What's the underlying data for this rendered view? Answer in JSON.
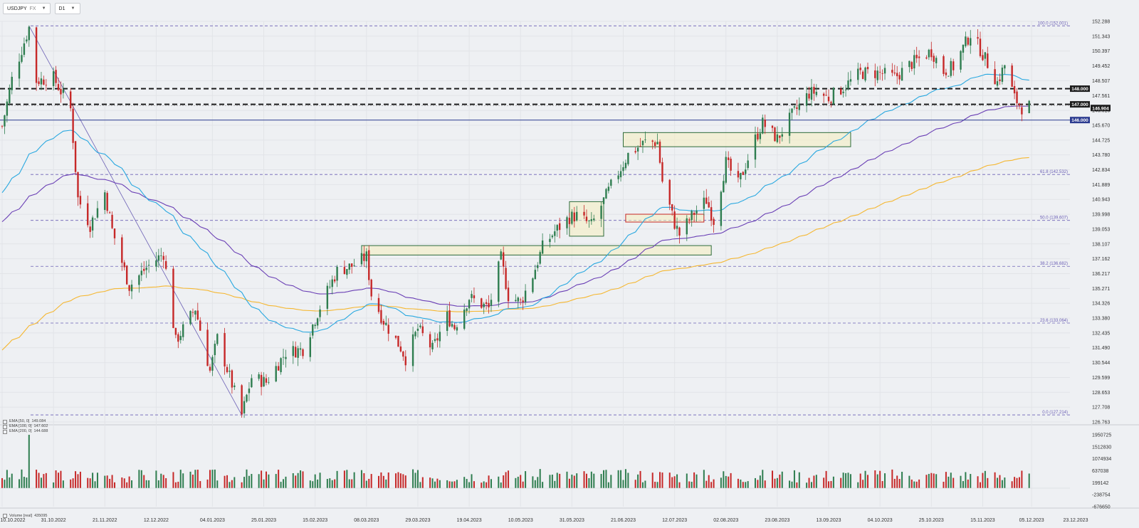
{
  "toolbar": {
    "symbol": "USDJPY",
    "symbol_suffix": "FX",
    "timeframe": "D1"
  },
  "indicators": [
    {
      "label": "EMA [50, 0]",
      "value": "149.084"
    },
    {
      "label": "EMA [100, 0]",
      "value": "147.602"
    },
    {
      "label": "EMA [200, 0]",
      "value": "144.688"
    }
  ],
  "volume_legend": {
    "label": "Volume [real]",
    "value": "435095"
  },
  "colors": {
    "up": "#2e7d4f",
    "down": "#c62828",
    "ema50": "#29a8e0",
    "ema100": "#6a3fb5",
    "ema200": "#f5b731",
    "level_line": "#1b1b1b",
    "support_line": "#2a3a8f",
    "fib": "#6b5fb5"
  },
  "chart_data": {
    "type": "candlestick",
    "ylim": [
      126.763,
      152.288
    ],
    "y_ticks": [
      "152.288",
      "151.343",
      "150.397",
      "149.452",
      "148.507",
      "147.561",
      "146.616",
      "145.670",
      "144.725",
      "143.780",
      "142.834",
      "141.889",
      "140.943",
      "139.998",
      "139.053",
      "138.107",
      "137.162",
      "136.217",
      "135.271",
      "134.326",
      "133.380",
      "132.435",
      "131.490",
      "130.544",
      "129.599",
      "128.653",
      "127.708",
      "126.763"
    ],
    "x_ticks": [
      "10.10.2022",
      "31.10.2022",
      "21.11.2022",
      "12.12.2022",
      "04.01.2023",
      "25.01.2023",
      "15.02.2023",
      "08.03.2023",
      "29.03.2023",
      "19.04.2023",
      "10.05.2023",
      "31.05.2023",
      "21.06.2023",
      "12.07.2023",
      "02.08.2023",
      "23.08.2023",
      "13.09.2023",
      "04.10.2023",
      "25.10.2023",
      "15.11.2023",
      "05.12.2023",
      "23.12.2023"
    ],
    "close_points": [
      {
        "d": "10.10.2022",
        "v": 145.6
      },
      {
        "d": "14.10.2022",
        "v": 148.6
      },
      {
        "d": "21.10.2022",
        "v": 151.9
      },
      {
        "d": "24.10.2022",
        "v": 148.5
      },
      {
        "d": "31.10.2022",
        "v": 148.7
      },
      {
        "d": "07.11.2022",
        "v": 146.7
      },
      {
        "d": "10.11.2022",
        "v": 141.0
      },
      {
        "d": "15.11.2022",
        "v": 139.3
      },
      {
        "d": "21.11.2022",
        "v": 141.4
      },
      {
        "d": "24.11.2022",
        "v": 139.0
      },
      {
        "d": "01.12.2022",
        "v": 135.4
      },
      {
        "d": "08.12.2022",
        "v": 136.6
      },
      {
        "d": "15.12.2022",
        "v": 137.5
      },
      {
        "d": "20.12.2022",
        "v": 131.9
      },
      {
        "d": "28.12.2022",
        "v": 134.0
      },
      {
        "d": "03.01.2023",
        "v": 130.0
      },
      {
        "d": "06.01.2023",
        "v": 132.1
      },
      {
        "d": "16.01.2023",
        "v": 127.2
      },
      {
        "d": "20.01.2023",
        "v": 129.6
      },
      {
        "d": "26.01.2023",
        "v": 129.3
      },
      {
        "d": "03.02.2023",
        "v": 131.2
      },
      {
        "d": "10.02.2023",
        "v": 131.4
      },
      {
        "d": "17.02.2023",
        "v": 134.1
      },
      {
        "d": "24.02.2023",
        "v": 136.4
      },
      {
        "d": "02.03.2023",
        "v": 136.7
      },
      {
        "d": "08.03.2023",
        "v": 137.3
      },
      {
        "d": "10.03.2023",
        "v": 134.9
      },
      {
        "d": "15.03.2023",
        "v": 133.2
      },
      {
        "d": "22.03.2023",
        "v": 131.5
      },
      {
        "d": "24.03.2023",
        "v": 130.8
      },
      {
        "d": "29.03.2023",
        "v": 132.7
      },
      {
        "d": "04.04.2023",
        "v": 131.4
      },
      {
        "d": "10.04.2023",
        "v": 133.5
      },
      {
        "d": "13.04.2023",
        "v": 132.8
      },
      {
        "d": "19.04.2023",
        "v": 134.7
      },
      {
        "d": "27.04.2023",
        "v": 134.0
      },
      {
        "d": "02.05.2023",
        "v": 137.2
      },
      {
        "d": "05.05.2023",
        "v": 134.8
      },
      {
        "d": "10.05.2023",
        "v": 134.4
      },
      {
        "d": "15.05.2023",
        "v": 136.1
      },
      {
        "d": "19.05.2023",
        "v": 137.9
      },
      {
        "d": "24.05.2023",
        "v": 138.9
      },
      {
        "d": "30.05.2023",
        "v": 139.8
      },
      {
        "d": "02.06.2023",
        "v": 139.9
      },
      {
        "d": "08.06.2023",
        "v": 139.3
      },
      {
        "d": "16.06.2023",
        "v": 141.8
      },
      {
        "d": "23.06.2023",
        "v": 143.8
      },
      {
        "d": "30.06.2023",
        "v": 144.6
      },
      {
        "d": "05.07.2023",
        "v": 144.6
      },
      {
        "d": "07.07.2023",
        "v": 142.1
      },
      {
        "d": "12.07.2023",
        "v": 139.4
      },
      {
        "d": "14.07.2023",
        "v": 138.7
      },
      {
        "d": "20.07.2023",
        "v": 140.1
      },
      {
        "d": "25.07.2023",
        "v": 140.9
      },
      {
        "d": "28.07.2023",
        "v": 139.6
      },
      {
        "d": "02.08.2023",
        "v": 143.3
      },
      {
        "d": "07.08.2023",
        "v": 141.9
      },
      {
        "d": "14.08.2023",
        "v": 144.8
      },
      {
        "d": "17.08.2023",
        "v": 145.8
      },
      {
        "d": "23.08.2023",
        "v": 144.8
      },
      {
        "d": "29.08.2023",
        "v": 146.3
      },
      {
        "d": "05.09.2023",
        "v": 147.7
      },
      {
        "d": "08.09.2023",
        "v": 147.8
      },
      {
        "d": "13.09.2023",
        "v": 147.4
      },
      {
        "d": "20.09.2023",
        "v": 148.2
      },
      {
        "d": "26.09.2023",
        "v": 149.0
      },
      {
        "d": "04.10.2023",
        "v": 149.0
      },
      {
        "d": "10.10.2023",
        "v": 148.7
      },
      {
        "d": "16.10.2023",
        "v": 149.5
      },
      {
        "d": "20.10.2023",
        "v": 149.9
      },
      {
        "d": "25.10.2023",
        "v": 150.4
      },
      {
        "d": "30.10.2023",
        "v": 149.1
      },
      {
        "d": "03.11.2023",
        "v": 149.4
      },
      {
        "d": "10.11.2023",
        "v": 151.5
      },
      {
        "d": "14.11.2023",
        "v": 150.5
      },
      {
        "d": "17.11.2023",
        "v": 149.6
      },
      {
        "d": "21.11.2023",
        "v": 148.4
      },
      {
        "d": "24.11.2023",
        "v": 149.5
      },
      {
        "d": "28.11.2023",
        "v": 147.4
      },
      {
        "d": "01.12.2023",
        "v": 146.8
      },
      {
        "d": "04.12.2023",
        "v": 146.9
      }
    ],
    "horizontal_levels": [
      {
        "label": "148.000",
        "value": 148.0,
        "style": "dashed-bold"
      },
      {
        "label": "147.000",
        "value": 147.0,
        "style": "dashed-bold"
      },
      {
        "label": "146.904",
        "value": 146.904,
        "style": "current"
      },
      {
        "label": "146.000",
        "value": 146.0,
        "style": "solid-blue"
      }
    ],
    "fibonacci": [
      {
        "label": "100.0 (152.001)",
        "value": 152.001
      },
      {
        "label": "61.8 (142.532)",
        "value": 142.532
      },
      {
        "label": "50.0 (139.607)",
        "value": 139.607
      },
      {
        "label": "38.2 (136.682)",
        "value": 136.682
      },
      {
        "label": "23.6 (133.064)",
        "value": 133.064
      },
      {
        "label": "0.0 (127.214)",
        "value": 127.214
      }
    ],
    "zones": [
      {
        "type": "green",
        "from": "21.06.2023",
        "to": "22.09.2023",
        "low": 144.3,
        "high": 145.2
      },
      {
        "type": "green",
        "from": "30.05.2023",
        "to": "13.06.2023",
        "low": 138.6,
        "high": 140.8
      },
      {
        "type": "green",
        "from": "06.03.2023",
        "to": "27.07.2023",
        "low": 137.4,
        "high": 138.0
      },
      {
        "type": "red",
        "from": "22.06.2023",
        "to": "24.07.2023",
        "low": 139.5,
        "high": 140.0
      }
    ],
    "volume_ticks": [
      "1950725",
      "1512830",
      "1074934",
      "637038",
      "199142",
      "-238754",
      "-676650"
    ]
  }
}
